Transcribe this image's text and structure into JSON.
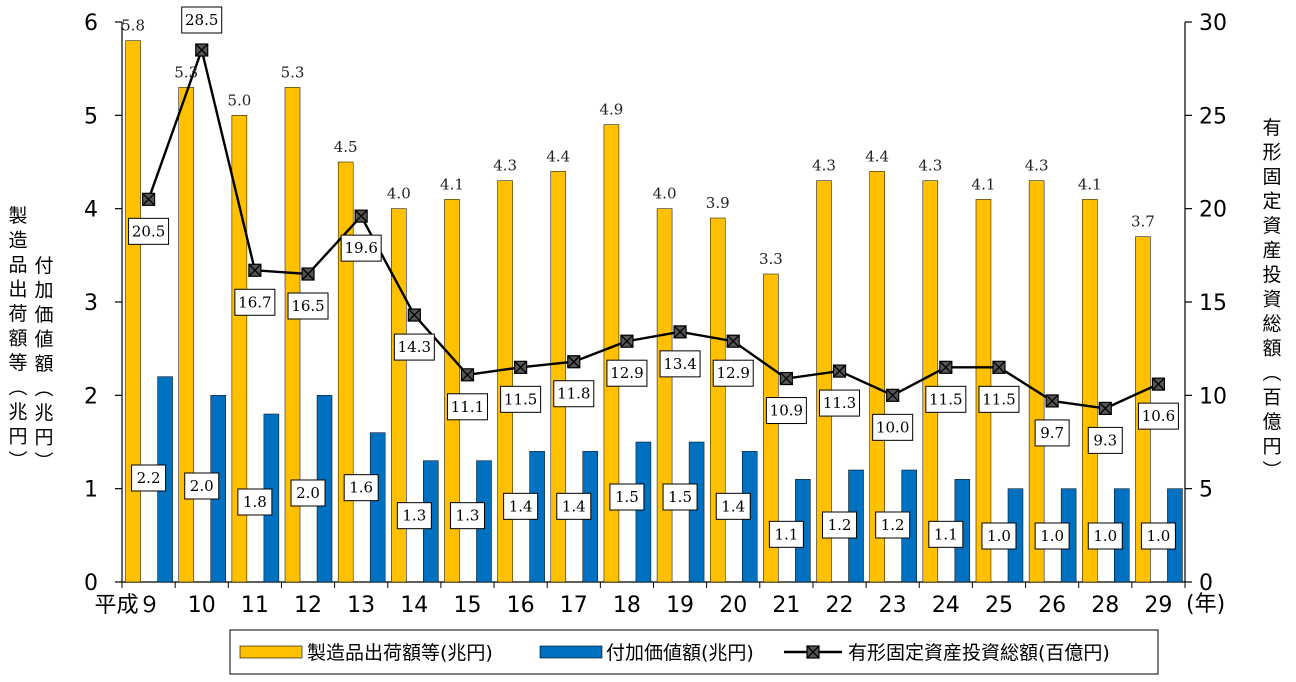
{
  "chart_data": {
    "type": "bar",
    "categories": [
      "平成９",
      "10",
      "11",
      "12",
      "13",
      "14",
      "15",
      "16",
      "17",
      "18",
      "19",
      "20",
      "21",
      "22",
      "23",
      "24",
      "25",
      "26",
      "28",
      "29"
    ],
    "x_unit": "(年)",
    "series": [
      {
        "name": "製造品出荷額等(兆円)",
        "type": "bar",
        "axis": "left",
        "color": "#FFC000",
        "values": [
          5.8,
          5.3,
          5.0,
          5.3,
          4.5,
          4.0,
          4.1,
          4.3,
          4.4,
          4.9,
          4.0,
          3.9,
          3.3,
          4.3,
          4.4,
          4.3,
          4.1,
          4.3,
          4.1,
          3.7
        ]
      },
      {
        "name": "付加価値額(兆円)",
        "type": "bar",
        "axis": "left",
        "color": "#0070C0",
        "values": [
          2.2,
          2.0,
          1.8,
          2.0,
          1.6,
          1.3,
          1.3,
          1.4,
          1.4,
          1.5,
          1.5,
          1.4,
          1.1,
          1.2,
          1.2,
          1.1,
          1.0,
          1.0,
          1.0,
          1.0
        ]
      },
      {
        "name": "有形固定資産投資総額(百億円)",
        "type": "line",
        "axis": "right",
        "color": "#000000",
        "values": [
          20.5,
          28.5,
          16.7,
          16.5,
          19.6,
          14.3,
          11.1,
          11.5,
          11.8,
          12.9,
          13.4,
          12.9,
          10.9,
          11.3,
          10.0,
          11.5,
          11.5,
          9.7,
          9.3,
          10.6
        ]
      }
    ],
    "y_left": {
      "ticks": [
        "0",
        "1",
        "2",
        "3",
        "4",
        "5",
        "6"
      ],
      "ylim": [
        0,
        6
      ],
      "label_outer": "製造品出荷額等(兆円)",
      "label_inner": "付加価値額(兆円)"
    },
    "y_right": {
      "ticks": [
        "0",
        "5",
        "10",
        "15",
        "20",
        "25",
        "30"
      ],
      "ylim": [
        0,
        30
      ],
      "label": "有形固定資産投資総額(百億円)"
    },
    "legend": {
      "placement": "bottom"
    }
  }
}
